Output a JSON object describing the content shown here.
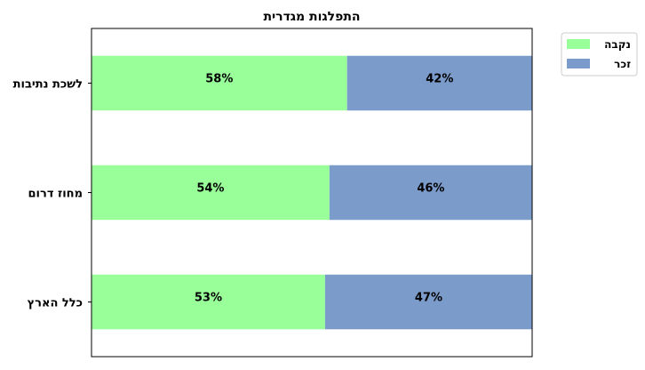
{
  "chart_data": {
    "type": "bar",
    "orientation": "horizontal",
    "stacked": true,
    "normalized_percent": true,
    "title": "התפלגות מגדרית",
    "categories": [
      "לשכת נתיבות",
      "מחוז דרום",
      "כלל הארץ"
    ],
    "series": [
      {
        "name": "נקבה",
        "values": [
          58,
          54,
          53
        ],
        "labels": [
          "58%",
          "54%",
          "53%"
        ],
        "color": "#99ff99"
      },
      {
        "name": "זכר",
        "values": [
          42,
          46,
          47
        ],
        "labels": [
          "42%",
          "46%",
          "47%"
        ],
        "color": "#7b9bcb"
      }
    ],
    "xlim": [
      0,
      100
    ],
    "x_ticks_visible": false,
    "grid": false,
    "legend": {
      "position": "outside-top-right",
      "entries": [
        "נקבה",
        "זכר"
      ]
    }
  }
}
